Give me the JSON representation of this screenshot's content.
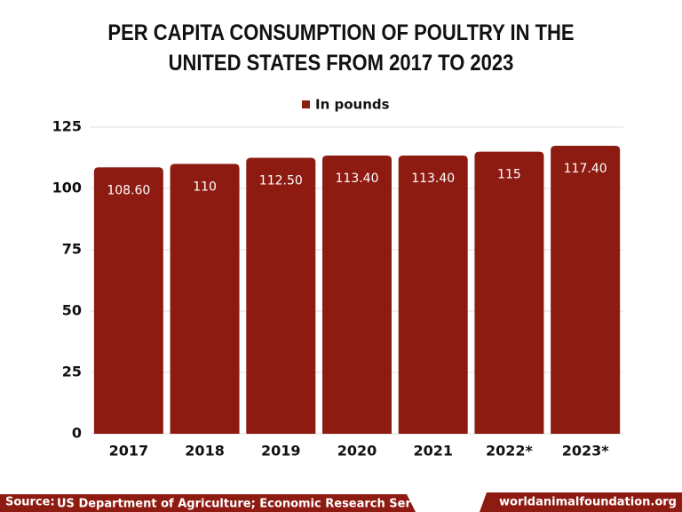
{
  "chart_data": {
    "type": "bar",
    "title": "PER CAPITA CONSUMPTION OF POULTRY IN THE UNITED STATES FROM 2017 TO 2023",
    "categories": [
      "2017",
      "2018",
      "2019",
      "2020",
      "2021",
      "2022*",
      "2023*"
    ],
    "series": [
      {
        "name": "In pounds",
        "color": "#8e1b12",
        "values": [
          108.6,
          110,
          112.5,
          113.4,
          113.4,
          115,
          117.4
        ],
        "value_labels": [
          "108.60",
          "110",
          "112.50",
          "113.40",
          "113.40",
          "115",
          "117.40"
        ]
      }
    ],
    "ylim": [
      0,
      125
    ],
    "yticks": [
      0,
      25,
      50,
      75,
      100,
      125
    ],
    "grid": true,
    "legend": "top"
  },
  "footer": {
    "source_label": "Source:",
    "source": "US Department of Agriculture; Economic Research Service",
    "website": "worldanimalfoundation.org"
  }
}
